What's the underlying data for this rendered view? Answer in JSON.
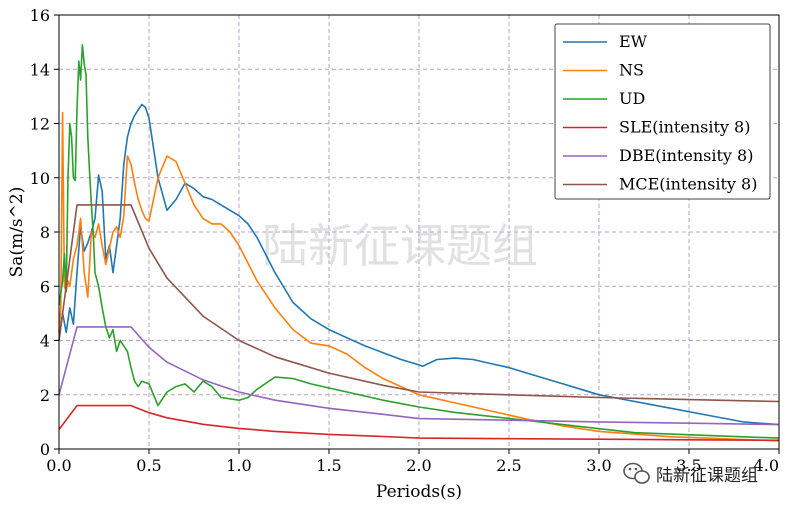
{
  "watermark_center": "陆新征课题组",
  "wechat_badge": {
    "icon": "wechat-icon",
    "text": "陆新征课题组"
  },
  "chart_data": {
    "type": "line",
    "xlabel": "Periods(s)",
    "ylabel": "Sa(m/s^2)",
    "xlim": [
      0,
      4.0
    ],
    "ylim": [
      0,
      16
    ],
    "xticks": [
      0.0,
      0.5,
      1.0,
      1.5,
      2.0,
      2.5,
      3.0,
      3.5,
      4.0
    ],
    "xtick_labels": [
      "0.0",
      "0.5",
      "1.0",
      "1.5",
      "2.0",
      "2.5",
      "3.0",
      "3.5",
      "4.0"
    ],
    "yticks": [
      0,
      2,
      4,
      6,
      8,
      10,
      12,
      14,
      16
    ],
    "ytick_labels": [
      "0",
      "2",
      "4",
      "6",
      "8",
      "10",
      "12",
      "14",
      "16"
    ],
    "grid": true,
    "legend_position": "top-right",
    "series": [
      {
        "name": "EW",
        "color": "#1f77b4",
        "x": [
          0,
          0.02,
          0.04,
          0.06,
          0.08,
          0.1,
          0.12,
          0.14,
          0.16,
          0.18,
          0.2,
          0.22,
          0.24,
          0.26,
          0.28,
          0.3,
          0.32,
          0.34,
          0.36,
          0.38,
          0.4,
          0.42,
          0.44,
          0.46,
          0.48,
          0.5,
          0.55,
          0.6,
          0.65,
          0.7,
          0.75,
          0.8,
          0.85,
          0.9,
          0.95,
          1.0,
          1.05,
          1.1,
          1.2,
          1.3,
          1.4,
          1.5,
          1.6,
          1.7,
          1.8,
          1.9,
          2.0,
          2.02,
          2.1,
          2.2,
          2.3,
          2.4,
          2.5,
          2.6,
          2.7,
          2.8,
          2.9,
          3.0,
          3.2,
          3.4,
          3.6,
          3.8,
          4.0
        ],
        "y": [
          4.0,
          5.0,
          4.3,
          5.2,
          4.6,
          6.5,
          8.2,
          7.3,
          7.6,
          8.0,
          8.5,
          10.1,
          9.5,
          7.0,
          7.5,
          6.5,
          7.5,
          8.5,
          10.5,
          11.5,
          12.0,
          12.3,
          12.5,
          12.7,
          12.6,
          12.2,
          10.0,
          8.8,
          9.2,
          9.8,
          9.6,
          9.3,
          9.2,
          9.0,
          8.8,
          8.6,
          8.3,
          7.8,
          6.5,
          5.4,
          4.8,
          4.4,
          4.1,
          3.8,
          3.55,
          3.3,
          3.1,
          3.05,
          3.3,
          3.35,
          3.3,
          3.15,
          3.0,
          2.8,
          2.6,
          2.4,
          2.2,
          2.0,
          1.75,
          1.5,
          1.25,
          1.0,
          0.9
        ]
      },
      {
        "name": "NS",
        "color": "#ff7f0e",
        "x": [
          0,
          0.01,
          0.02,
          0.03,
          0.04,
          0.05,
          0.06,
          0.08,
          0.1,
          0.12,
          0.14,
          0.16,
          0.18,
          0.2,
          0.22,
          0.24,
          0.26,
          0.28,
          0.3,
          0.32,
          0.34,
          0.36,
          0.38,
          0.4,
          0.42,
          0.44,
          0.46,
          0.48,
          0.5,
          0.55,
          0.6,
          0.65,
          0.7,
          0.75,
          0.8,
          0.85,
          0.9,
          0.95,
          1.0,
          1.1,
          1.2,
          1.3,
          1.4,
          1.5,
          1.6,
          1.7,
          1.8,
          1.9,
          2.0,
          2.2,
          2.4,
          2.6,
          2.8,
          3.0,
          3.2,
          3.4,
          3.6,
          3.8,
          4.0
        ],
        "y": [
          4.3,
          5.2,
          12.4,
          6.0,
          5.8,
          6.2,
          6.0,
          7.0,
          7.5,
          8.5,
          6.5,
          5.6,
          8.0,
          7.8,
          8.3,
          7.5,
          6.8,
          7.4,
          8.0,
          8.2,
          7.8,
          8.6,
          10.8,
          10.5,
          9.8,
          9.2,
          8.8,
          8.5,
          8.4,
          10.0,
          10.8,
          10.6,
          9.8,
          9.0,
          8.5,
          8.3,
          8.3,
          8.0,
          7.5,
          6.2,
          5.2,
          4.4,
          3.9,
          3.8,
          3.5,
          3.0,
          2.6,
          2.3,
          2.0,
          1.7,
          1.4,
          1.1,
          0.85,
          0.65,
          0.55,
          0.45,
          0.4,
          0.35,
          0.3
        ]
      },
      {
        "name": "UD",
        "color": "#2ca02c",
        "x": [
          0,
          0.02,
          0.03,
          0.04,
          0.05,
          0.06,
          0.07,
          0.08,
          0.09,
          0.1,
          0.11,
          0.12,
          0.13,
          0.14,
          0.15,
          0.16,
          0.17,
          0.18,
          0.19,
          0.2,
          0.22,
          0.24,
          0.26,
          0.28,
          0.3,
          0.32,
          0.34,
          0.36,
          0.38,
          0.4,
          0.42,
          0.44,
          0.46,
          0.5,
          0.55,
          0.6,
          0.65,
          0.7,
          0.75,
          0.8,
          0.85,
          0.9,
          1.0,
          1.05,
          1.1,
          1.2,
          1.3,
          1.4,
          1.5,
          1.6,
          1.8,
          2.0,
          2.2,
          2.4,
          2.6,
          2.8,
          3.0,
          3.2,
          3.4,
          3.6,
          3.8,
          4.0
        ],
        "y": [
          5.3,
          6.2,
          7.2,
          5.8,
          10.0,
          12.0,
          11.5,
          10.0,
          9.9,
          12.5,
          14.3,
          13.6,
          14.9,
          14.2,
          13.8,
          11.5,
          10.2,
          9.0,
          8.0,
          6.5,
          6.0,
          5.2,
          4.5,
          4.1,
          4.4,
          3.6,
          4.0,
          3.8,
          3.6,
          3.0,
          2.5,
          2.3,
          2.5,
          2.4,
          1.6,
          2.1,
          2.3,
          2.4,
          2.1,
          2.5,
          2.3,
          1.9,
          1.8,
          1.9,
          2.2,
          2.65,
          2.6,
          2.4,
          2.25,
          2.1,
          1.8,
          1.55,
          1.35,
          1.2,
          1.05,
          0.9,
          0.75,
          0.6,
          0.55,
          0.5,
          0.45,
          0.4
        ]
      },
      {
        "name": "SLE(intensity 8)",
        "color": "#d62728",
        "x": [
          0,
          0.1,
          0.4,
          0.5,
          0.6,
          0.8,
          1.0,
          1.2,
          1.5,
          1.8,
          2.0,
          2.5,
          3.0,
          3.5,
          4.0
        ],
        "y": [
          0.72,
          1.6,
          1.6,
          1.34,
          1.15,
          0.91,
          0.76,
          0.65,
          0.54,
          0.46,
          0.4,
          0.38,
          0.36,
          0.34,
          0.32
        ]
      },
      {
        "name": "DBE(intensity 8)",
        "color": "#9467bd",
        "x": [
          0,
          0.1,
          0.4,
          0.5,
          0.6,
          0.8,
          1.0,
          1.2,
          1.5,
          1.8,
          2.0,
          2.5,
          3.0,
          3.5,
          4.0
        ],
        "y": [
          2.0,
          4.5,
          4.5,
          3.75,
          3.2,
          2.55,
          2.1,
          1.8,
          1.5,
          1.28,
          1.12,
          1.06,
          1.0,
          0.95,
          0.9
        ]
      },
      {
        "name": "MCE(intensity 8)",
        "color": "#8c564b",
        "x": [
          0,
          0.1,
          0.4,
          0.5,
          0.6,
          0.8,
          1.0,
          1.2,
          1.5,
          1.8,
          2.0,
          2.5,
          3.0,
          3.5,
          4.0
        ],
        "y": [
          4.0,
          9.0,
          9.0,
          7.4,
          6.3,
          4.9,
          4.0,
          3.4,
          2.8,
          2.35,
          2.1,
          2.0,
          1.9,
          1.82,
          1.75
        ]
      }
    ]
  }
}
